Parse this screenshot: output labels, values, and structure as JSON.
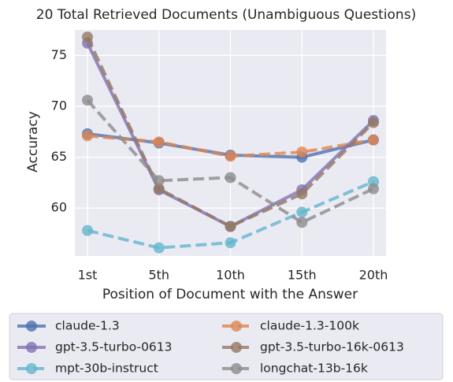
{
  "chart_data": {
    "type": "line",
    "title": "20 Total Retrieved Documents (Unambiguous Questions)",
    "x_label": "Position of Document with the Answer",
    "y_label": "Accuracy",
    "categories": [
      "1st",
      "5th",
      "10th",
      "15th",
      "20th"
    ],
    "ylim": [
      55.3,
      77.5
    ],
    "yticks": [
      60,
      65,
      70,
      75
    ],
    "grid": true,
    "legend": "bottom",
    "series": [
      {
        "name": "claude-1.3",
        "color": "#4c72b0",
        "dashed": false,
        "values": [
          67.3,
          66.4,
          65.2,
          65.0,
          66.7
        ]
      },
      {
        "name": "claude-1.3-100k",
        "color": "#dd8452",
        "dashed": true,
        "values": [
          67.1,
          66.5,
          65.1,
          65.5,
          66.7
        ]
      },
      {
        "name": "gpt-3.5-turbo-0613",
        "color": "#8172b3",
        "dashed": false,
        "values": [
          76.2,
          61.8,
          58.2,
          61.8,
          68.6
        ]
      },
      {
        "name": "gpt-3.5-turbo-16k-0613",
        "color": "#937860",
        "dashed": true,
        "values": [
          76.8,
          61.9,
          58.2,
          61.4,
          68.4
        ]
      },
      {
        "name": "mpt-30b-instruct",
        "color": "#64b5cd",
        "dashed": true,
        "values": [
          57.8,
          56.1,
          56.6,
          59.6,
          62.6
        ]
      },
      {
        "name": "longchat-13b-16k",
        "color": "#8c8c8c",
        "dashed": true,
        "values": [
          70.6,
          62.7,
          63.0,
          58.6,
          61.9
        ]
      }
    ]
  }
}
